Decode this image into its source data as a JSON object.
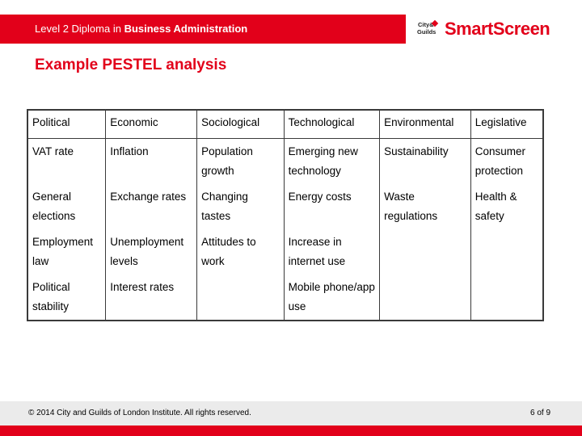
{
  "header": {
    "title_prefix": "Level 2 Diploma in ",
    "title_bold": "Business Administration",
    "logo_badge_line1": "City&",
    "logo_badge_line2": "Guilds",
    "logo_word": "SmartScreen"
  },
  "slide": {
    "title": "Example PESTEL analysis"
  },
  "table": {
    "headers": [
      "Political",
      "Economic",
      "Sociological",
      "Technological",
      "Environmental",
      "Legislative"
    ],
    "rows": [
      [
        "VAT rate",
        "Inflation",
        "Population growth",
        "Emerging new technology",
        "Sustainability",
        "Consumer protection"
      ],
      [
        "General elections",
        "Exchange rates",
        "Changing tastes",
        "Energy costs",
        "Waste regulations",
        "Health & safety"
      ],
      [
        "Employment law",
        "Unemployment levels",
        "Attitudes to work",
        "Increase in internet use",
        "",
        ""
      ],
      [
        "Political stability",
        "Interest rates",
        "",
        "Mobile phone/app use",
        "",
        ""
      ]
    ]
  },
  "footer": {
    "copyright": "© 2014 City and Guilds of London Institute. All rights reserved.",
    "page": "6 of 9"
  },
  "colors": {
    "brand_red": "#e2001a",
    "footer_grey": "#ebebeb"
  }
}
